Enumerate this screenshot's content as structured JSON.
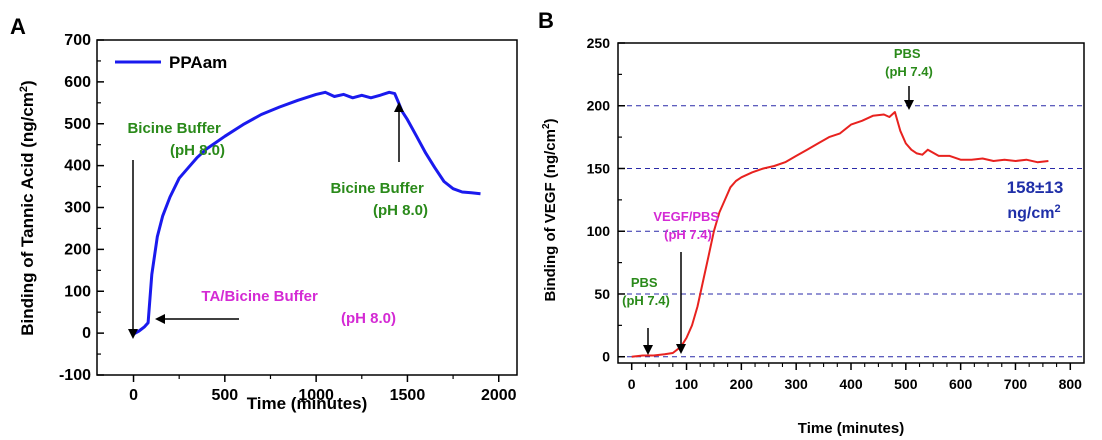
{
  "colors": {
    "ppaam_line": "#1a1aee",
    "vegf_line": "#e8221f",
    "green_text": "#2a8a1a",
    "magenta_text": "#d42ad4",
    "value_text": "#1f2fa8",
    "gridline": "#2a2aa8"
  },
  "chart_data": [
    {
      "panel": "A",
      "type": "line",
      "title": "",
      "xlabel": "Time (minutes)",
      "ylabel": "Binding of Tannic Acid (ng/cm2)",
      "ylabel_unit_base": "Binding of Tannic Acid (ng/cm",
      "ylabel_sup": "2",
      "ylabel_close": ")",
      "xlim": [
        -200,
        2100
      ],
      "ylim": [
        -100,
        700
      ],
      "xticks": [
        0,
        500,
        1000,
        1500,
        2000
      ],
      "yticks": [
        -100,
        0,
        100,
        200,
        300,
        400,
        500,
        600,
        700
      ],
      "grid": false,
      "legend_position": "top-left",
      "series": [
        {
          "name": "PPAam",
          "x": [
            0,
            30,
            60,
            80,
            100,
            130,
            160,
            200,
            250,
            300,
            350,
            400,
            450,
            500,
            600,
            700,
            800,
            900,
            1000,
            1050,
            1100,
            1150,
            1200,
            1250,
            1300,
            1350,
            1400,
            1430,
            1450,
            1470,
            1500,
            1550,
            1600,
            1650,
            1700,
            1750,
            1800,
            1850,
            1900
          ],
          "y": [
            -2,
            5,
            15,
            25,
            140,
            230,
            280,
            325,
            370,
            395,
            420,
            440,
            455,
            470,
            498,
            522,
            540,
            556,
            570,
            575,
            565,
            570,
            562,
            568,
            562,
            568,
            575,
            572,
            552,
            530,
            510,
            470,
            430,
            395,
            362,
            345,
            337,
            335,
            333
          ]
        }
      ],
      "annotations": [
        {
          "lines": [
            "Bicine Buffer",
            "(pH 8.0)"
          ],
          "color": "green",
          "arrow_x": -20
        },
        {
          "lines": [
            "Bicine Buffer",
            "(pH 8.0)"
          ],
          "color": "green",
          "arrow_x": 1430
        },
        {
          "lines": [
            "TA/Bicine Buffer",
            "(pH 8.0)"
          ],
          "color": "magenta",
          "arrow_x": 70
        }
      ]
    },
    {
      "panel": "B",
      "type": "line",
      "title": "",
      "xlabel": "Time (minutes)",
      "ylabel": "Binding of VEGF (ng/cm2)",
      "ylabel_unit_base": "Binding of VEGF (ng/cm",
      "ylabel_sup": "2",
      "ylabel_close": ")",
      "xlim": [
        -25,
        825
      ],
      "ylim": [
        -5,
        250
      ],
      "xticks": [
        0,
        100,
        200,
        300,
        400,
        500,
        600,
        700,
        800
      ],
      "yticks": [
        0,
        50,
        100,
        150,
        200,
        250
      ],
      "grid": true,
      "grid_values": [
        0,
        50,
        100,
        150,
        200
      ],
      "series": [
        {
          "name": "",
          "x": [
            0,
            20,
            40,
            60,
            75,
            90,
            100,
            110,
            120,
            130,
            140,
            150,
            160,
            170,
            180,
            190,
            200,
            220,
            240,
            260,
            280,
            300,
            320,
            340,
            360,
            380,
            400,
            420,
            440,
            460,
            470,
            480,
            490,
            500,
            510,
            520,
            530,
            540,
            560,
            580,
            600,
            620,
            640,
            660,
            680,
            700,
            720,
            740,
            760
          ],
          "y": [
            0,
            1,
            1,
            2,
            3,
            8,
            15,
            25,
            40,
            60,
            80,
            100,
            115,
            125,
            135,
            140,
            143,
            147,
            150,
            152,
            155,
            160,
            165,
            170,
            175,
            178,
            185,
            188,
            192,
            193,
            191,
            195,
            180,
            170,
            165,
            162,
            161,
            165,
            160,
            160,
            157,
            157,
            158,
            156,
            157,
            156,
            157,
            155,
            156
          ]
        }
      ],
      "annotations": [
        {
          "lines": [
            "PBS",
            "(pH 7.4)"
          ],
          "color": "green",
          "arrow_x": 0
        },
        {
          "lines": [
            "VEGF/PBS",
            "(pH 7.4)"
          ],
          "color": "magenta",
          "arrow_x": 75
        },
        {
          "lines": [
            "PBS",
            "(pH 7.4)"
          ],
          "color": "green",
          "arrow_x": 480
        }
      ],
      "value_label": {
        "line1": "158±13",
        "line2_base": "ng/cm",
        "line2_sup": "2"
      }
    }
  ]
}
